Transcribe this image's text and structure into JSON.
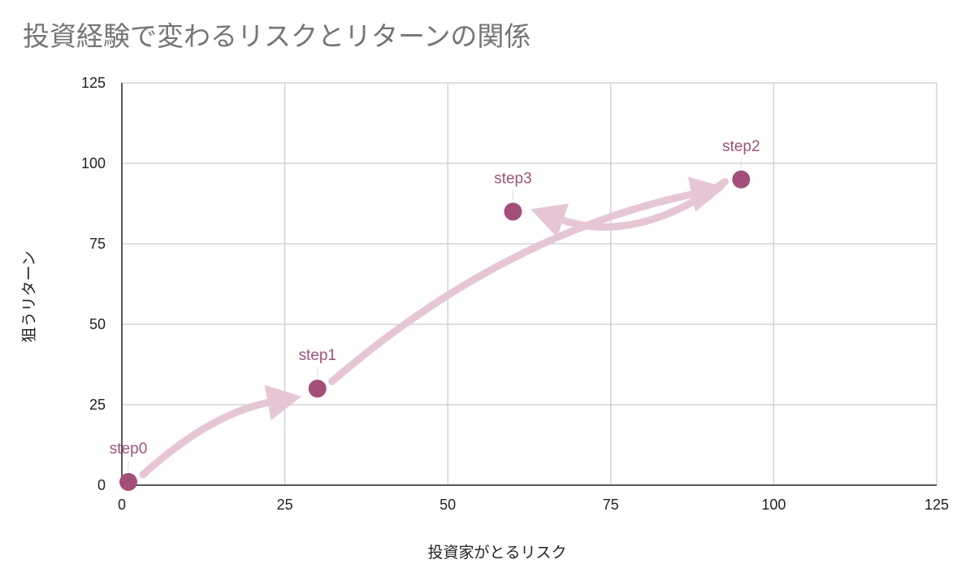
{
  "chart_data": {
    "type": "scatter",
    "title": "投資経験で変わるリスクとリターンの関係",
    "xlabel": "投資家がとるリスク",
    "ylabel": "狙うリターン",
    "xlim": [
      0,
      125
    ],
    "ylim": [
      0,
      125
    ],
    "xticks": [
      0,
      25,
      50,
      75,
      100,
      125
    ],
    "yticks": [
      0,
      25,
      50,
      75,
      100,
      125
    ],
    "grid": true,
    "points": [
      {
        "label": "step0",
        "x": 1,
        "y": 1
      },
      {
        "label": "step1",
        "x": 30,
        "y": 30
      },
      {
        "label": "step2",
        "x": 95,
        "y": 95
      },
      {
        "label": "step3",
        "x": 60,
        "y": 85
      }
    ],
    "arrows": [
      {
        "from": "step0",
        "to": "step1"
      },
      {
        "from": "step1",
        "to": "step2"
      },
      {
        "from": "step2",
        "to": "step3"
      }
    ],
    "colors": {
      "point": "#a44f7a",
      "label": "#a44f7a",
      "arrow": "#e6c6d5",
      "grid": "#cccccc",
      "axis": "#222222",
      "title": "#757575"
    }
  }
}
